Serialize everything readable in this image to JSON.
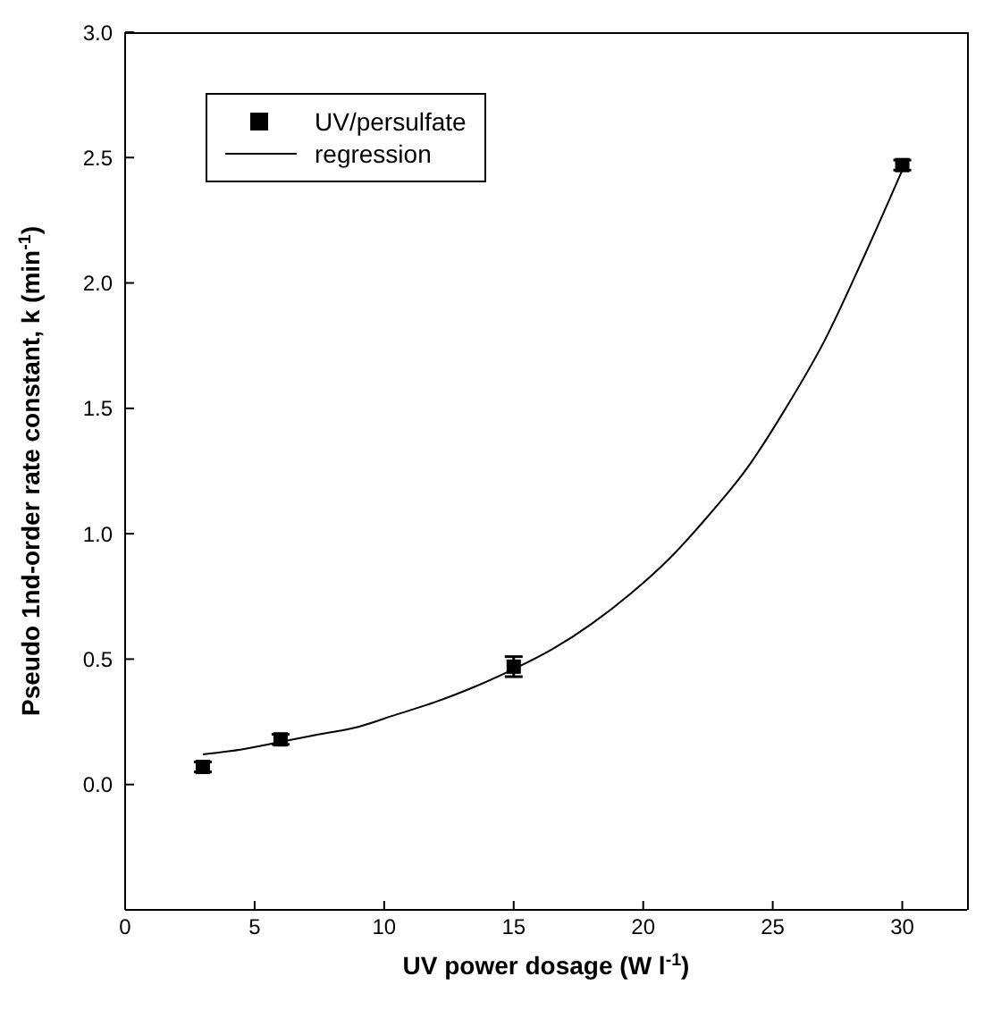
{
  "chart_data": {
    "type": "scatter",
    "xlabel": "UV power dosage (W l$^{-1}$)",
    "ylabel": "Pseudo 1nd-order rate constant, k (min$^{-1}$)",
    "xlim": [
      0,
      32.5
    ],
    "xticks": [
      0,
      5,
      10,
      15,
      20,
      25,
      30
    ],
    "ylim": [
      -0.5,
      3.0
    ],
    "yticks": [
      {
        "value": 0,
        "label": "0.0"
      },
      {
        "value": 0.5,
        "label": "0.5"
      },
      {
        "value": 1,
        "label": "1.0"
      },
      {
        "value": 1.5,
        "label": "1.5"
      },
      {
        "value": 2,
        "label": "2.0"
      },
      {
        "value": 2.5,
        "label": "2.5"
      },
      {
        "value": 3,
        "label": "3.0"
      }
    ],
    "series": [
      {
        "name": "UV/persulfate",
        "color": "#000000",
        "x": [
          3,
          6,
          15,
          30
        ],
        "values": [
          0.07,
          0.18,
          0.47,
          2.47
        ],
        "errors": [
          0.02,
          0.02,
          0.04,
          0.02
        ],
        "marker": "square"
      },
      {
        "name": "regression",
        "type": "line",
        "color": "#000000",
        "x": [
          3,
          4.5,
          6,
          7.5,
          9,
          10.5,
          12,
          13.5,
          15,
          16.5,
          18,
          19.5,
          21,
          22.5,
          24,
          25.5,
          27,
          28.5,
          30
        ],
        "values": [
          0.12,
          0.14,
          0.17,
          0.2,
          0.23,
          0.28,
          0.33,
          0.39,
          0.46,
          0.54,
          0.64,
          0.76,
          0.9,
          1.07,
          1.26,
          1.5,
          1.77,
          2.1,
          2.45
        ]
      }
    ],
    "legend": "top left",
    "grid": false
  }
}
